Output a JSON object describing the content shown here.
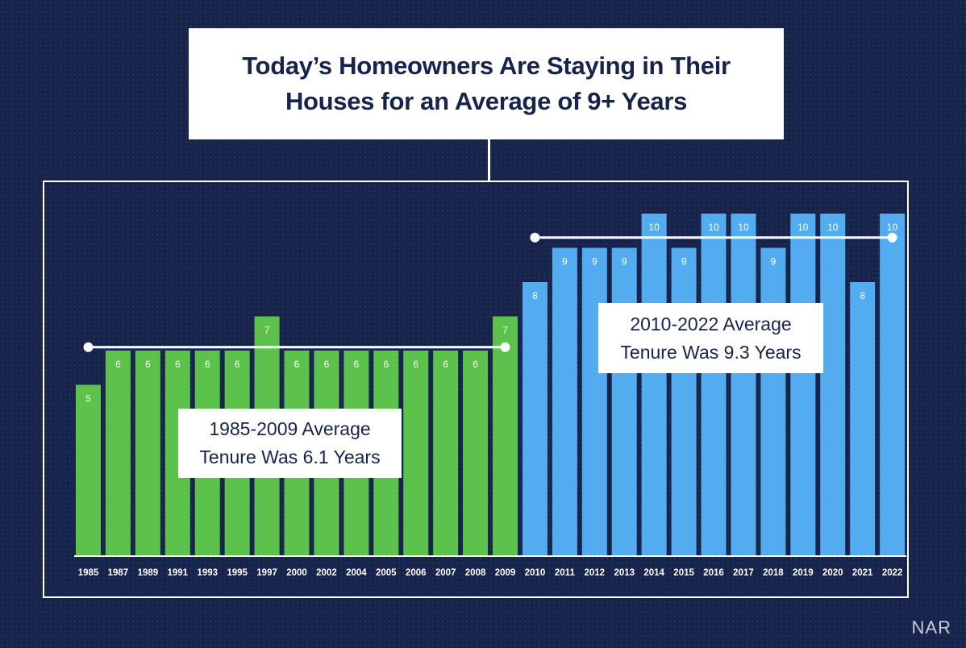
{
  "header": {
    "title": "Today’s Homeowners Are Staying in Their Houses for an Average of 9+ Years"
  },
  "annotations": {
    "early_average": "1985-2009 Average Tenure Was 6.1 Years",
    "recent_average": "2010-2022 Average Tenure Was 9.3 Years"
  },
  "brand": "NAR",
  "colors": {
    "background": "#16234b",
    "early_bars": "#5cc24b",
    "recent_bars": "#54acf0",
    "frame": "#ffffff"
  },
  "chart_data": {
    "type": "bar",
    "title": "Today’s Homeowners Are Staying in Their Houses for an Average of 9+ Years",
    "xlabel": "",
    "ylabel": "",
    "ylim": [
      0,
      11
    ],
    "categories": [
      "1985",
      "1987",
      "1989",
      "1991",
      "1993",
      "1995",
      "1997",
      "2000",
      "2002",
      "2004",
      "2005",
      "2006",
      "2007",
      "2008",
      "2009",
      "2010",
      "2011",
      "2012",
      "2013",
      "2014",
      "2015",
      "2016",
      "2017",
      "2018",
      "2019",
      "2020",
      "2021",
      "2022"
    ],
    "values": [
      5,
      6,
      6,
      6,
      6,
      6,
      7,
      6,
      6,
      6,
      6,
      6,
      6,
      6,
      7,
      8,
      9,
      9,
      9,
      10,
      9,
      10,
      10,
      9,
      10,
      10,
      8,
      10
    ],
    "series_split": {
      "early": {
        "name": "1985-2009",
        "from": "1985",
        "to": "2009",
        "average": 6.1
      },
      "recent": {
        "name": "2010-2022",
        "from": "2010",
        "to": "2022",
        "average": 9.3
      }
    }
  }
}
